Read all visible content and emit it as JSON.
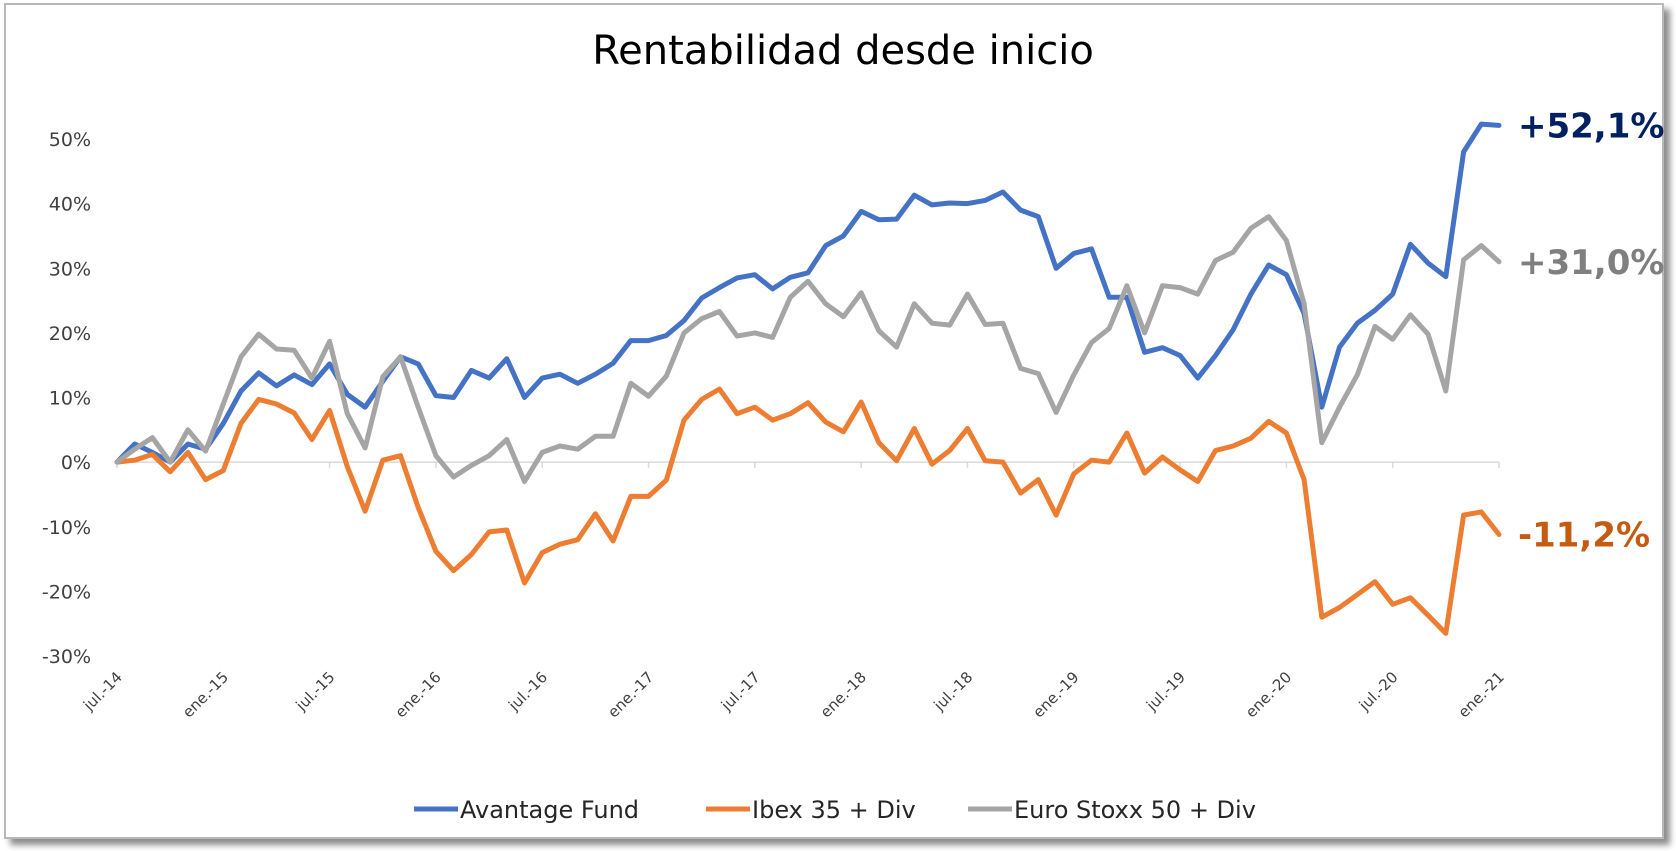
{
  "chart_data": {
    "type": "line",
    "title": "Rentabilidad desde inicio",
    "xlabel": "",
    "ylabel": "",
    "ylim": [
      -0.3,
      0.5
    ],
    "yticks": [
      {
        "value": 0.5,
        "label": "50%"
      },
      {
        "value": 0.4,
        "label": "40%"
      },
      {
        "value": 0.3,
        "label": "30%"
      },
      {
        "value": 0.2,
        "label": "20%"
      },
      {
        "value": 0.1,
        "label": "10%"
      },
      {
        "value": 0.0,
        "label": "0%"
      },
      {
        "value": -0.1,
        "label": "-10%"
      },
      {
        "value": -0.2,
        "label": "-20%"
      },
      {
        "value": -0.3,
        "label": "-30%"
      }
    ],
    "xticks": [
      {
        "label": "jul.-14",
        "index": 0
      },
      {
        "label": "ene.-15",
        "index": 6
      },
      {
        "label": "jul.-15",
        "index": 12
      },
      {
        "label": "ene.-16",
        "index": 18
      },
      {
        "label": "jul.-16",
        "index": 24
      },
      {
        "label": "ene.-17",
        "index": 30
      },
      {
        "label": "jul.-17",
        "index": 36
      },
      {
        "label": "ene.-18",
        "index": 42
      },
      {
        "label": "jul.-18",
        "index": 48
      },
      {
        "label": "ene.-19",
        "index": 54
      },
      {
        "label": "jul.-19",
        "index": 60
      },
      {
        "label": "ene.-20",
        "index": 66
      },
      {
        "label": "jul.-20",
        "index": 72
      },
      {
        "label": "ene.-21",
        "index": 78
      }
    ],
    "x_start": "jul.-14",
    "x_end": "ene.-21",
    "legend_position": "bottom",
    "series": [
      {
        "name": "Avantage Fund",
        "color": "#4472C4",
        "end_label": "+52,1%",
        "end_label_color": "#002060",
        "values": [
          0.0,
          0.028,
          0.015,
          0.0,
          0.028,
          0.02,
          0.06,
          0.11,
          0.138,
          0.118,
          0.135,
          0.12,
          0.152,
          0.105,
          0.085,
          0.125,
          0.163,
          0.152,
          0.103,
          0.1,
          0.142,
          0.13,
          0.16,
          0.1,
          0.13,
          0.136,
          0.122,
          0.136,
          0.153,
          0.188,
          0.188,
          0.196,
          0.219,
          0.254,
          0.27,
          0.285,
          0.29,
          0.268,
          0.286,
          0.293,
          0.335,
          0.35,
          0.388,
          0.375,
          0.376,
          0.413,
          0.398,
          0.401,
          0.4,
          0.405,
          0.418,
          0.39,
          0.38,
          0.3,
          0.323,
          0.33,
          0.255,
          0.255,
          0.17,
          0.177,
          0.165,
          0.13,
          0.165,
          0.205,
          0.26,
          0.305,
          0.29,
          0.23,
          0.085,
          0.178,
          0.215,
          0.235,
          0.26,
          0.337,
          0.308,
          0.287,
          0.48,
          0.523,
          0.521
        ]
      },
      {
        "name": "Ibex 35 + Div",
        "color": "#ED7D31",
        "end_label": "-11,2%",
        "end_label_color": "#C55A11",
        "values": [
          0.0,
          0.003,
          0.012,
          -0.015,
          0.015,
          -0.027,
          -0.013,
          0.06,
          0.097,
          0.09,
          0.076,
          0.035,
          0.08,
          -0.007,
          -0.076,
          0.003,
          0.01,
          -0.07,
          -0.138,
          -0.168,
          -0.143,
          -0.108,
          -0.105,
          -0.187,
          -0.14,
          -0.127,
          -0.12,
          -0.08,
          -0.122,
          -0.053,
          -0.053,
          -0.028,
          0.065,
          0.097,
          0.113,
          0.075,
          0.085,
          0.065,
          0.075,
          0.092,
          0.062,
          0.047,
          0.093,
          0.03,
          0.002,
          0.052,
          -0.003,
          0.018,
          0.052,
          0.002,
          0.0,
          -0.048,
          -0.027,
          -0.082,
          -0.018,
          0.003,
          0.0,
          0.045,
          -0.017,
          0.008,
          -0.012,
          -0.03,
          0.018,
          0.025,
          0.037,
          0.063,
          0.045,
          -0.027,
          -0.24,
          -0.225,
          -0.205,
          -0.185,
          -0.22,
          -0.21,
          -0.237,
          -0.265,
          -0.082,
          -0.077,
          -0.112
        ]
      },
      {
        "name": "Euro Stoxx 50 + Div",
        "color": "#A5A5A5",
        "end_label": "+31,0%",
        "end_label_color": "#7F7F7F",
        "values": [
          0.0,
          0.02,
          0.038,
          0.0,
          0.05,
          0.017,
          0.09,
          0.163,
          0.198,
          0.175,
          0.173,
          0.13,
          0.187,
          0.075,
          0.022,
          0.132,
          0.163,
          0.085,
          0.01,
          -0.023,
          -0.005,
          0.01,
          0.035,
          -0.03,
          0.015,
          0.025,
          0.02,
          0.04,
          0.04,
          0.122,
          0.102,
          0.133,
          0.2,
          0.222,
          0.233,
          0.195,
          0.2,
          0.193,
          0.255,
          0.28,
          0.245,
          0.225,
          0.262,
          0.203,
          0.178,
          0.245,
          0.215,
          0.212,
          0.26,
          0.213,
          0.215,
          0.145,
          0.137,
          0.077,
          0.135,
          0.185,
          0.207,
          0.273,
          0.2,
          0.273,
          0.27,
          0.26,
          0.312,
          0.325,
          0.362,
          0.38,
          0.343,
          0.245,
          0.03,
          0.085,
          0.135,
          0.21,
          0.19,
          0.228,
          0.198,
          0.11,
          0.313,
          0.335,
          0.31
        ]
      }
    ]
  }
}
